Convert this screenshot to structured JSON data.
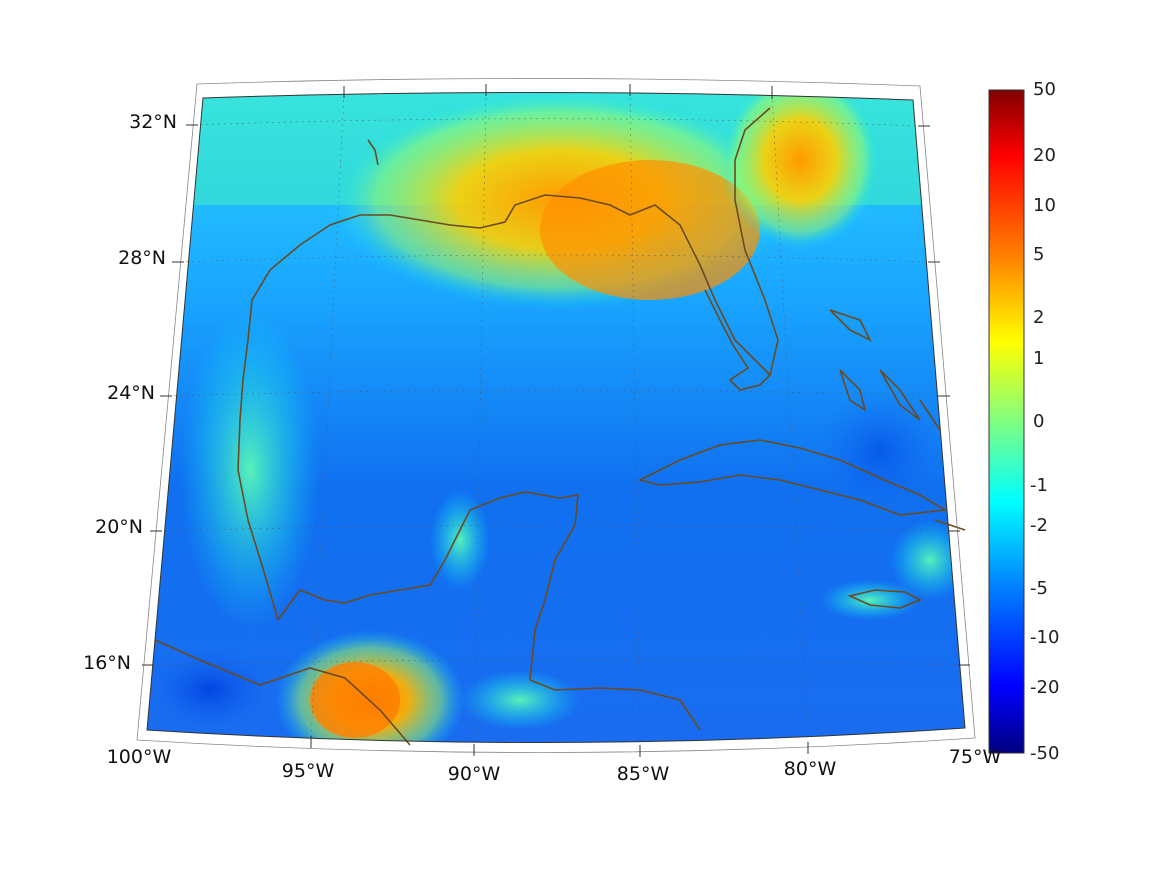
{
  "map": {
    "lat_labels": [
      "32°N",
      "28°N",
      "24°N",
      "20°N",
      "16°N"
    ],
    "lon_labels": [
      "100°W",
      "95°W",
      "90°W",
      "85°W",
      "80°W",
      "75°W"
    ],
    "colorbar": {
      "ticks": [
        "50",
        "20",
        "10",
        "5",
        "2",
        "1",
        "0",
        "-1",
        "-2",
        "-5",
        "-10",
        "-20",
        "-50"
      ],
      "colors_top_to_bottom": [
        "#800000",
        "#ff0000",
        "#ff8000",
        "#ffff00",
        "#80ff80",
        "#00ffff",
        "#0080ff",
        "#0000ff",
        "#000080"
      ]
    },
    "colors": {
      "coastline": "#6b4a20",
      "frame": "#333333",
      "gridline": "#555555"
    }
  }
}
